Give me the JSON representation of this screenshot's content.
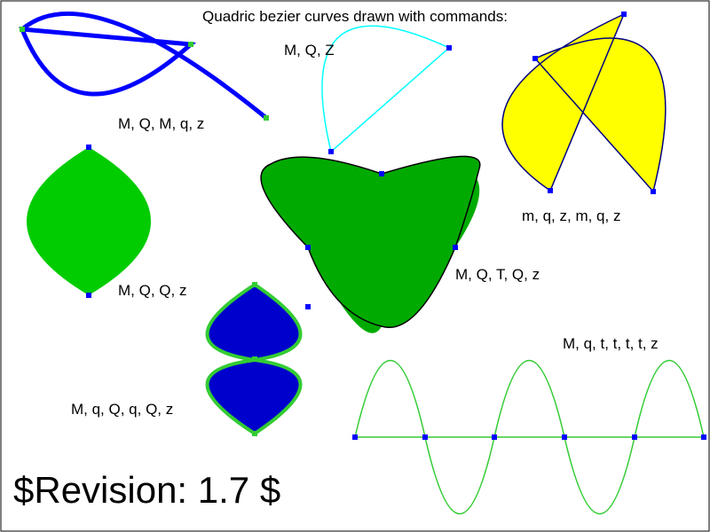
{
  "title": "Quadric bezier curves drawn with commands:",
  "revision": "$Revision: 1.7 $",
  "labels": {
    "shape1": "M, Q, M, q, z",
    "shape2": "M, Q, Z",
    "shape3": "m, q, z, m, q, z",
    "shape4": "M, Q, Q, z",
    "shape5": "M, Q, T, Q, z",
    "shape6": "M, q, Q, q, Q, z",
    "shape7": "M, q, t, t, t, t, z"
  },
  "colors": {
    "blue_stroke": "#0000ff",
    "cyan_stroke": "#00ffff",
    "yellow_fill": "#ffff00",
    "navy_stroke": "#000080",
    "green_fill": "#00cc00",
    "dark_blue_fill": "#0000cc",
    "lime_stroke": "#33cc33",
    "point_blue": "#0000ff",
    "point_green": "#33cc33",
    "frame": "#000000"
  }
}
